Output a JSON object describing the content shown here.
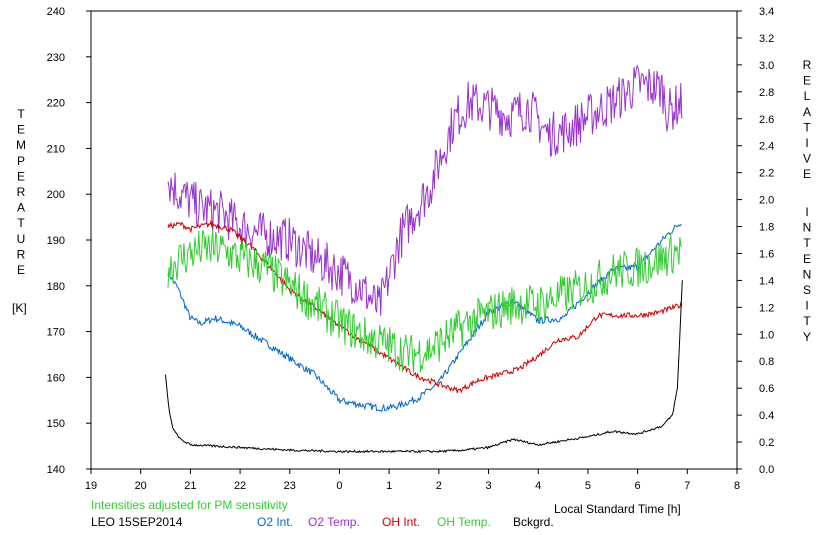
{
  "chart_data": {
    "type": "line",
    "note": "Intensities adjusted for PM sensitivity",
    "station": "LEO 15SEP2014",
    "xlabel": "Local Standard Time [h]",
    "ylabel_left_letters": [
      "T",
      "E",
      "M",
      "P",
      "E",
      "R",
      "A",
      "T",
      "U",
      "R",
      "E"
    ],
    "ylabel_left_unit": "[K]",
    "ylabel_right_letters": [
      "R",
      "E",
      "L",
      "A",
      "T",
      "I",
      "V",
      "E"
    ],
    "ylabel_right_letters2": [
      "I",
      "N",
      "T",
      "E",
      "N",
      "S",
      "I",
      "T",
      "Y"
    ],
    "x_axis": {
      "range": [
        19,
        32
      ],
      "tick_values": [
        19,
        20,
        21,
        22,
        23,
        24,
        25,
        26,
        27,
        28,
        29,
        30,
        31,
        32
      ],
      "tick_labels": [
        "19",
        "20",
        "21",
        "22",
        "23",
        "0",
        "1",
        "2",
        "3",
        "4",
        "5",
        "6",
        "7",
        "8"
      ]
    },
    "y_left": {
      "range": [
        140,
        240
      ],
      "tick_labels": [
        "140",
        "150",
        "160",
        "170",
        "180",
        "190",
        "200",
        "210",
        "220",
        "230",
        "240"
      ]
    },
    "y_right": {
      "range": [
        0.0,
        3.4
      ],
      "tick_labels": [
        "0.0",
        "0.2",
        "0.4",
        "0.6",
        "0.8",
        "1.0",
        "1.2",
        "1.4",
        "1.6",
        "1.8",
        "2.0",
        "2.2",
        "2.4",
        "2.6",
        "2.8",
        "3.0",
        "3.2",
        "3.4"
      ]
    },
    "grid": false,
    "series": [
      {
        "name": "O2 Int.",
        "axis": "right",
        "color": "#0066cc",
        "noise": 0.025,
        "x": [
          20.55,
          20.65,
          20.75,
          21.0,
          21.2,
          21.5,
          22.0,
          22.5,
          23.0,
          23.5,
          24.0,
          24.5,
          24.9,
          25.2,
          25.6,
          26.0,
          26.5,
          27.0,
          27.5,
          28.0,
          28.5,
          29.0,
          29.5,
          30.0,
          30.3,
          30.6,
          30.9
        ],
        "y": [
          1.46,
          1.4,
          1.34,
          1.12,
          1.08,
          1.12,
          1.06,
          0.94,
          0.82,
          0.7,
          0.51,
          0.47,
          0.45,
          0.47,
          0.53,
          0.64,
          0.9,
          1.16,
          1.25,
          1.1,
          1.12,
          1.31,
          1.48,
          1.5,
          1.62,
          1.74,
          1.84
        ]
      },
      {
        "name": "O2 Temp.",
        "axis": "left",
        "color": "#9933cc",
        "noise": 5,
        "x": [
          20.55,
          20.8,
          21.2,
          21.6,
          22.0,
          22.5,
          23.0,
          23.5,
          24.0,
          24.4,
          24.8,
          25.0,
          25.2,
          25.5,
          25.8,
          26.0,
          26.3,
          26.6,
          27.0,
          27.4,
          27.8,
          28.2,
          28.6,
          29.0,
          29.5,
          30.0,
          30.5,
          30.6,
          30.9
        ],
        "y": [
          203,
          200,
          197,
          196,
          193,
          191,
          190,
          186,
          183,
          180,
          175,
          182,
          190,
          196,
          201,
          207,
          216,
          220,
          219,
          217,
          219,
          213,
          214,
          217,
          220,
          224,
          223,
          218,
          220
        ]
      },
      {
        "name": "OH Int.",
        "axis": "right",
        "color": "#cc0000",
        "noise": 0.02,
        "x": [
          20.55,
          20.8,
          21.0,
          21.4,
          21.8,
          22.2,
          22.6,
          23.0,
          23.5,
          24.0,
          24.5,
          25.0,
          25.5,
          26.0,
          26.4,
          26.8,
          27.2,
          27.6,
          28.0,
          28.4,
          28.8,
          29.2,
          29.6,
          30.0,
          30.4,
          30.9
        ],
        "y": [
          1.8,
          1.82,
          1.78,
          1.82,
          1.78,
          1.66,
          1.5,
          1.33,
          1.2,
          1.06,
          0.94,
          0.82,
          0.7,
          0.63,
          0.58,
          0.66,
          0.7,
          0.74,
          0.84,
          0.96,
          0.98,
          1.14,
          1.14,
          1.14,
          1.16,
          1.22
        ]
      },
      {
        "name": "OH Temp.",
        "axis": "left",
        "color": "#33cc33",
        "noise": 4.5,
        "x": [
          20.55,
          20.8,
          21.2,
          21.6,
          22.0,
          22.5,
          23.0,
          23.5,
          24.0,
          24.5,
          25.0,
          25.4,
          25.8,
          26.2,
          26.6,
          27.0,
          27.5,
          28.0,
          28.5,
          29.0,
          29.5,
          30.0,
          30.5,
          30.9
        ],
        "y": [
          184,
          186,
          188,
          188,
          186,
          184,
          180,
          176,
          172,
          169,
          167,
          165,
          166,
          169,
          172,
          174,
          176,
          176,
          178,
          180,
          183,
          184,
          186,
          188
        ]
      },
      {
        "name": "Bckgrd.",
        "axis": "right",
        "color": "#000000",
        "noise": 0.008,
        "x": [
          20.5,
          20.55,
          20.6,
          20.65,
          20.7,
          20.8,
          21.0,
          21.5,
          22.0,
          23.0,
          24.0,
          25.0,
          26.0,
          26.5,
          27.0,
          27.5,
          28.0,
          29.0,
          29.5,
          30.0,
          30.5,
          30.7,
          30.8,
          30.85,
          30.9
        ],
        "y": [
          0.7,
          0.5,
          0.38,
          0.3,
          0.27,
          0.22,
          0.18,
          0.17,
          0.16,
          0.14,
          0.13,
          0.13,
          0.13,
          0.14,
          0.16,
          0.22,
          0.18,
          0.24,
          0.28,
          0.26,
          0.32,
          0.4,
          0.6,
          1.0,
          1.4
        ]
      }
    ]
  }
}
